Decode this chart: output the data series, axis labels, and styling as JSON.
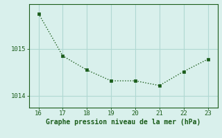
{
  "x": [
    16,
    17,
    18,
    19,
    20,
    21,
    22,
    23
  ],
  "y": [
    1015.75,
    1014.85,
    1014.55,
    1014.32,
    1014.32,
    1014.22,
    1014.52,
    1014.78
  ],
  "line_color": "#1a5c1a",
  "marker": "s",
  "marker_size": 2.5,
  "background_color": "#d9f0ec",
  "grid_color": "#b0d8d2",
  "xlabel": "Graphe pression niveau de la mer (hPa)",
  "xlim": [
    15.6,
    23.4
  ],
  "ylim": [
    1013.75,
    1015.95
  ],
  "xticks": [
    16,
    17,
    18,
    19,
    20,
    21,
    22,
    23
  ],
  "yticks": [
    1014,
    1015
  ],
  "tick_fontsize": 6.5,
  "label_fontsize": 7
}
